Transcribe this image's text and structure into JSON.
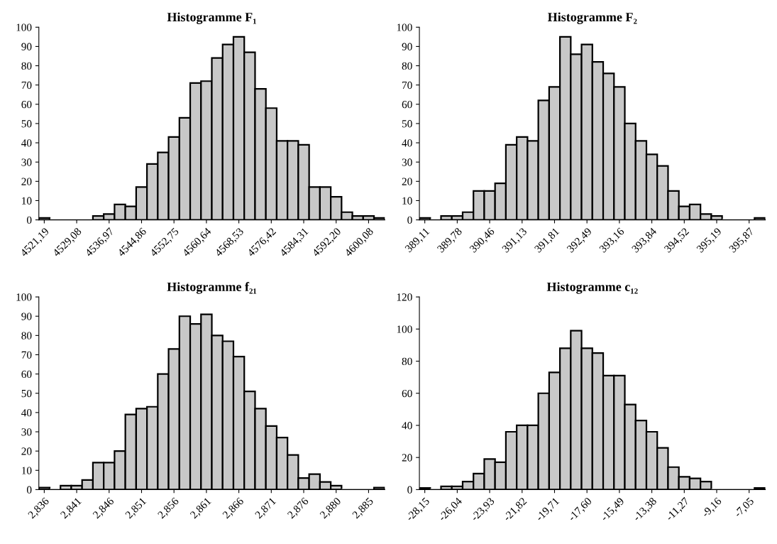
{
  "chart_data": [
    {
      "type": "bar",
      "title": "Histogramme F₁",
      "color": "#c8c8c8",
      "grid": false,
      "ylim": [
        0,
        100
      ],
      "yticks": [
        0,
        10,
        20,
        30,
        40,
        50,
        60,
        70,
        80,
        90,
        100
      ],
      "categories": [
        "4521,19",
        null,
        null,
        "4529,08",
        null,
        null,
        "4536,97",
        null,
        null,
        "4544,86",
        null,
        null,
        "4552,75",
        null,
        null,
        "4560,64",
        null,
        null,
        "4568,53",
        null,
        null,
        "4576,42",
        null,
        null,
        "4584,31",
        null,
        null,
        "4592,20",
        null,
        null,
        "4600,08",
        null
      ],
      "values": [
        1,
        0,
        0,
        0,
        0,
        2,
        3,
        8,
        7,
        17,
        29,
        35,
        43,
        53,
        71,
        72,
        84,
        91,
        95,
        87,
        68,
        58,
        41,
        41,
        39,
        17,
        17,
        12,
        4,
        2,
        2,
        1
      ]
    },
    {
      "type": "bar",
      "title": "Histogramme F₂",
      "color": "#c8c8c8",
      "grid": false,
      "ylim": [
        0,
        100
      ],
      "yticks": [
        0,
        10,
        20,
        30,
        40,
        50,
        60,
        70,
        80,
        90,
        100
      ],
      "categories": [
        "389,11",
        null,
        null,
        "389,78",
        null,
        null,
        "390,46",
        null,
        null,
        "391,13",
        null,
        null,
        "391,81",
        null,
        null,
        "392,49",
        null,
        null,
        "393,16",
        null,
        null,
        "393,84",
        null,
        null,
        "394,52",
        null,
        null,
        "395,19",
        null,
        null,
        "395,87",
        null
      ],
      "values": [
        1,
        0,
        2,
        2,
        4,
        15,
        15,
        19,
        39,
        43,
        41,
        62,
        69,
        95,
        86,
        91,
        82,
        76,
        69,
        50,
        41,
        34,
        28,
        15,
        7,
        8,
        3,
        2,
        0,
        0,
        0,
        1
      ]
    },
    {
      "type": "bar",
      "title": "Histogramme f₂₁",
      "color": "#c8c8c8",
      "grid": false,
      "ylim": [
        0,
        100
      ],
      "yticks": [
        0,
        10,
        20,
        30,
        40,
        50,
        60,
        70,
        80,
        90,
        100
      ],
      "categories": [
        "2,836",
        null,
        null,
        "2,841",
        null,
        null,
        "2,846",
        null,
        null,
        "2,851",
        null,
        null,
        "2,856",
        null,
        null,
        "2,861",
        null,
        null,
        "2,866",
        null,
        null,
        "2,871",
        null,
        null,
        "2,876",
        null,
        null,
        "2,880",
        null,
        null,
        "2,885",
        null
      ],
      "values": [
        1,
        0,
        2,
        2,
        5,
        14,
        14,
        20,
        39,
        42,
        43,
        60,
        73,
        90,
        86,
        91,
        80,
        77,
        69,
        51,
        42,
        33,
        27,
        18,
        6,
        8,
        4,
        2,
        0,
        0,
        0,
        1
      ]
    },
    {
      "type": "bar",
      "title": "Histogramme c₁₂",
      "color": "#c8c8c8",
      "grid": false,
      "ylim": [
        0,
        120
      ],
      "yticks": [
        0,
        20,
        40,
        60,
        80,
        100,
        120
      ],
      "categories": [
        "-28,15",
        null,
        null,
        "-26,04",
        null,
        null,
        "-23,93",
        null,
        null,
        "-21,82",
        null,
        null,
        "-19,71",
        null,
        null,
        "-17,60",
        null,
        null,
        "-15,49",
        null,
        null,
        "-13,38",
        null,
        null,
        "-11,27",
        null,
        null,
        "-9,16",
        null,
        null,
        "-7,05",
        null
      ],
      "values": [
        1,
        0,
        2,
        2,
        5,
        10,
        19,
        17,
        36,
        40,
        40,
        60,
        73,
        88,
        99,
        88,
        85,
        71,
        71,
        53,
        43,
        36,
        26,
        14,
        8,
        7,
        5,
        0,
        0,
        0,
        0,
        1
      ]
    }
  ]
}
